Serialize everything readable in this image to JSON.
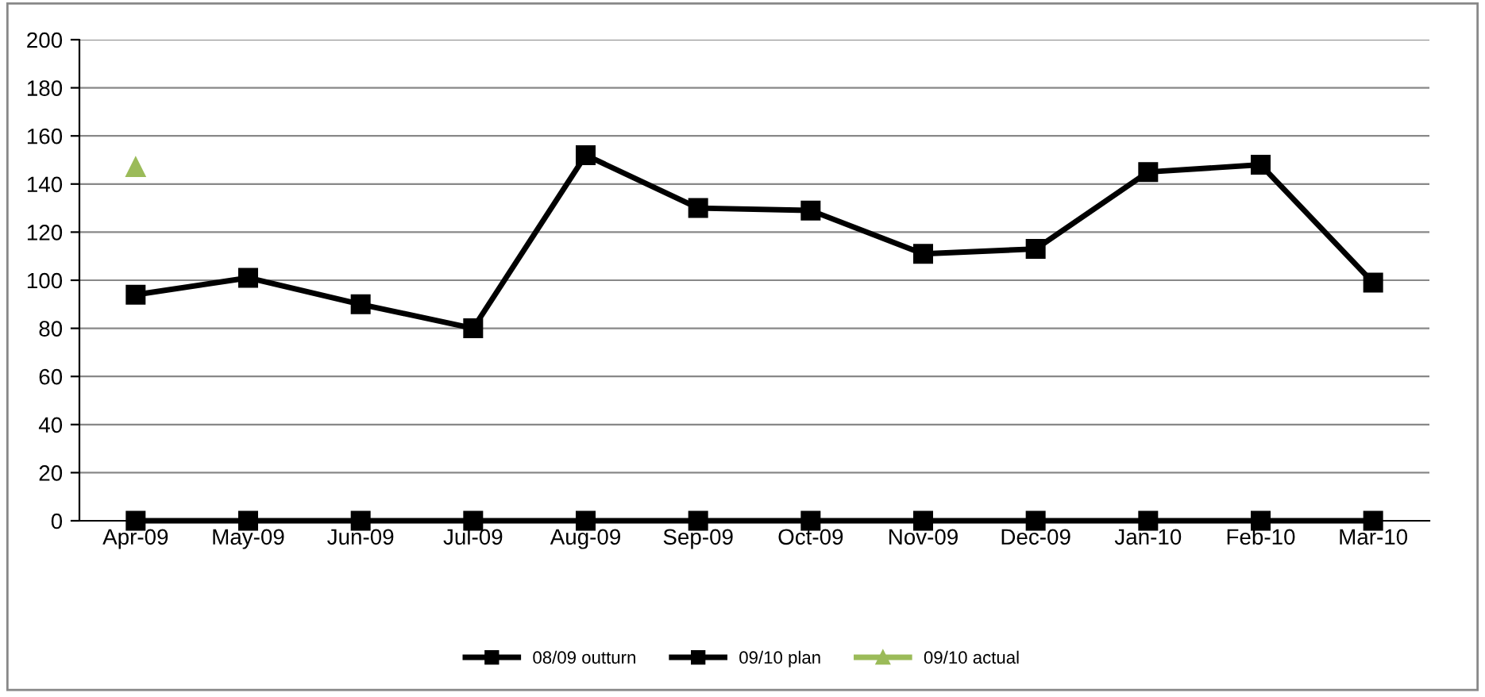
{
  "chart_data": {
    "type": "line",
    "categories": [
      "Apr-09",
      "May-09",
      "Jun-09",
      "Jul-09",
      "Aug-09",
      "Sep-09",
      "Oct-09",
      "Nov-09",
      "Dec-09",
      "Jan-10",
      "Feb-10",
      "Mar-10"
    ],
    "series": [
      {
        "name": "08/09 outturn",
        "color": "#000000",
        "marker": "square",
        "values": [
          94,
          101,
          90,
          80,
          152,
          130,
          129,
          111,
          113,
          145,
          148,
          99
        ]
      },
      {
        "name": "09/10 plan",
        "color": "#000000",
        "marker": "square",
        "values": [
          0,
          0,
          0,
          0,
          0,
          0,
          0,
          0,
          0,
          0,
          0,
          0
        ]
      },
      {
        "name": "09/10 actual",
        "color": "#9bbb59",
        "marker": "triangle",
        "values": [
          147,
          null,
          null,
          null,
          null,
          null,
          null,
          null,
          null,
          null,
          null,
          null
        ]
      }
    ],
    "ylim": [
      0,
      200
    ],
    "yticks": [
      0,
      20,
      40,
      60,
      80,
      100,
      120,
      140,
      160,
      180,
      200
    ],
    "grid": "y",
    "legend": "bottom",
    "line_style": "solid"
  }
}
